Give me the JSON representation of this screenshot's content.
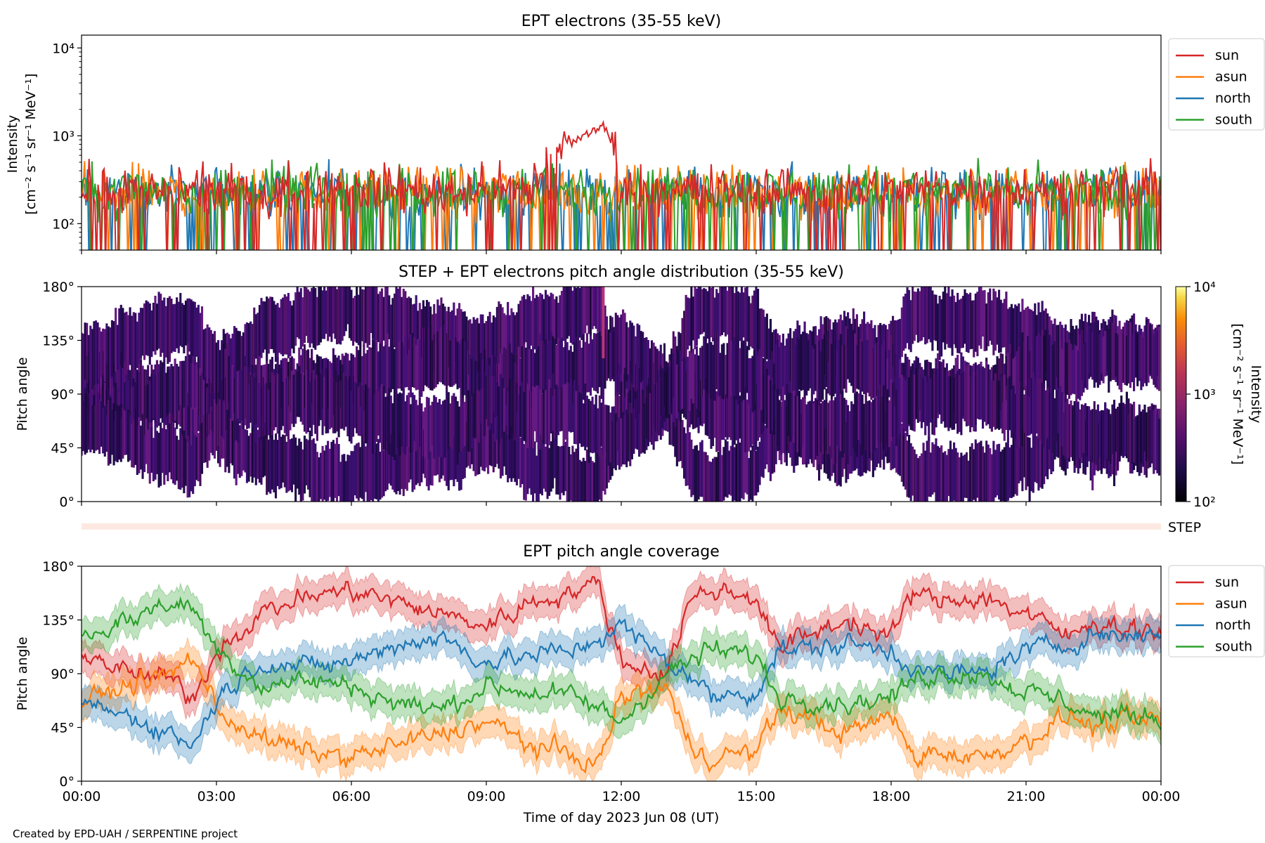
{
  "credit": "Created by EPD-UAH / SERPENTINE project",
  "colors": {
    "sun": "#d62728",
    "asun": "#ff7f0e",
    "north": "#1f77b4",
    "south": "#2ca02c"
  },
  "chart_data": [
    {
      "type": "line",
      "title": "EPT electrons (35-55 keV)",
      "ylabel": [
        "Intensity",
        "[cm⁻² s⁻¹ sr⁻¹ MeV⁻¹]"
      ],
      "yscale": "log",
      "ylim": [
        50,
        14000
      ],
      "ytick_labels": [
        "10²",
        "10³",
        "10⁴"
      ],
      "yticks": [
        100,
        1000,
        10000
      ],
      "xlim": [
        "2023-06-08T00:00",
        "2023-06-09T00:00"
      ],
      "legend": "outside-right",
      "series": [
        {
          "name": "sun",
          "color": "#d62728",
          "x": [
            "00:00",
            "02:00",
            "04:00",
            "06:00",
            "08:00",
            "10:00",
            "11:36",
            "12:00",
            "14:00",
            "16:00",
            "18:00",
            "20:00",
            "22:00",
            "24:00"
          ],
          "y": [
            250,
            240,
            230,
            260,
            240,
            250,
            1300,
            260,
            240,
            250,
            240,
            250,
            240,
            250
          ]
        },
        {
          "name": "asun",
          "color": "#ff7f0e",
          "x": [
            "00:00",
            "04:00",
            "08:00",
            "12:00",
            "16:00",
            "20:00",
            "24:00"
          ],
          "y": [
            230,
            220,
            240,
            230,
            240,
            230,
            240
          ]
        },
        {
          "name": "north",
          "color": "#1f77b4",
          "x": [
            "00:00",
            "04:00",
            "08:00",
            "12:00",
            "16:00",
            "20:00",
            "24:00"
          ],
          "y": [
            220,
            230,
            220,
            240,
            230,
            220,
            230
          ]
        },
        {
          "name": "south",
          "color": "#2ca02c",
          "x": [
            "00:00",
            "04:00",
            "08:00",
            "12:00",
            "16:00",
            "20:00",
            "24:00"
          ],
          "y": [
            240,
            250,
            230,
            240,
            230,
            240,
            230
          ]
        }
      ]
    },
    {
      "type": "heatmap",
      "title": "STEP + EPT electrons pitch angle distribution (35-55 keV)",
      "ylabel": "Pitch angle",
      "ylim": [
        0,
        180
      ],
      "ytick_labels": [
        "0°",
        "45°",
        "90°",
        "135°",
        "180°"
      ],
      "colorbar_label": [
        "Intensity",
        "[cm⁻² s⁻¹ sr⁻¹ MeV⁻¹]"
      ],
      "colorbar_ticks": [
        "10²",
        "10³",
        "10⁴"
      ],
      "colorbar_range": [
        100,
        10000
      ],
      "colormap": "inferno"
    },
    {
      "type": "bar",
      "label": "STEP"
    },
    {
      "type": "line",
      "title": "EPT pitch angle coverage",
      "ylabel": "Pitch angle",
      "ylim": [
        0,
        180
      ],
      "ytick_labels": [
        "0°",
        "45°",
        "90°",
        "135°",
        "180°"
      ],
      "xlabel": "Time of day 2023 Jun 08 (UT)",
      "xtick_labels": [
        "00:00",
        "03:00",
        "06:00",
        "09:00",
        "12:00",
        "15:00",
        "18:00",
        "21:00",
        "00:00"
      ],
      "legend": "outside-right",
      "series": [
        {
          "name": "sun",
          "color": "#d62728",
          "x": [
            0,
            1,
            2,
            2.5,
            3,
            4,
            5,
            6,
            7,
            8,
            9,
            10,
            11,
            11.5,
            12,
            13,
            13.5,
            14,
            15,
            15.5,
            16,
            17,
            18,
            18.5,
            19,
            20,
            21,
            22,
            22.5,
            23,
            24
          ],
          "y": [
            110,
            90,
            85,
            70,
            110,
            140,
            155,
            160,
            150,
            140,
            130,
            150,
            160,
            165,
            100,
            90,
            150,
            160,
            155,
            110,
            120,
            135,
            120,
            160,
            150,
            155,
            140,
            120,
            135,
            130,
            125
          ]
        },
        {
          "name": "asun",
          "color": "#ff7f0e",
          "x": [
            0,
            1,
            2,
            2.5,
            3,
            4,
            5,
            6,
            7,
            8,
            9,
            10,
            11,
            11.5,
            12,
            13,
            13.5,
            14,
            15,
            15.5,
            16,
            17,
            18,
            18.5,
            19,
            20,
            21,
            22,
            22.5,
            23,
            24
          ],
          "y": [
            65,
            80,
            90,
            105,
            60,
            35,
            25,
            20,
            30,
            40,
            50,
            30,
            20,
            15,
            70,
            80,
            30,
            20,
            25,
            60,
            55,
            40,
            55,
            20,
            25,
            20,
            35,
            55,
            45,
            50,
            50
          ]
        },
        {
          "name": "north",
          "color": "#1f77b4",
          "x": [
            0,
            1,
            2,
            2.5,
            3,
            4,
            5,
            6,
            7,
            8,
            9,
            10,
            11,
            11.5,
            12,
            13,
            13.5,
            14,
            15,
            15.5,
            16,
            17,
            18,
            18.5,
            19,
            20,
            21,
            22,
            22.5,
            23,
            24
          ],
          "y": [
            65,
            55,
            40,
            30,
            70,
            100,
            95,
            100,
            115,
            120,
            100,
            105,
            110,
            120,
            130,
            100,
            90,
            70,
            75,
            110,
            110,
            115,
            110,
            95,
            90,
            90,
            110,
            115,
            125,
            120,
            125
          ]
        },
        {
          "name": "south",
          "color": "#2ca02c",
          "x": [
            0,
            1,
            2,
            2.5,
            3,
            4,
            5,
            6,
            7,
            8,
            9,
            10,
            11,
            11.5,
            12,
            13,
            13.5,
            14,
            15,
            15.5,
            16,
            17,
            18,
            18.5,
            19,
            20,
            21,
            22,
            22.5,
            23,
            24
          ],
          "y": [
            120,
            135,
            150,
            145,
            110,
            80,
            85,
            80,
            65,
            60,
            80,
            75,
            70,
            60,
            50,
            90,
            100,
            110,
            105,
            70,
            70,
            65,
            70,
            85,
            90,
            90,
            75,
            65,
            55,
            55,
            55
          ]
        }
      ]
    }
  ]
}
